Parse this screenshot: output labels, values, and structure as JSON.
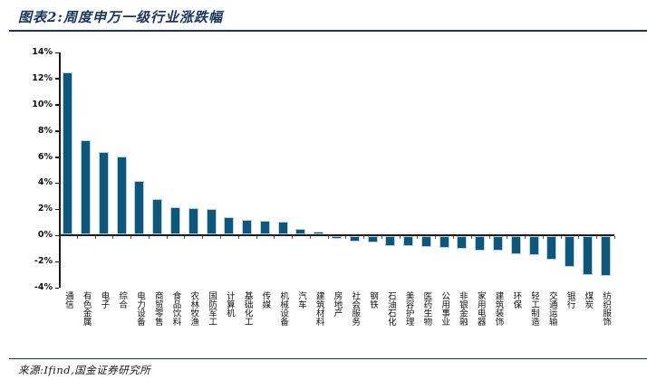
{
  "header": {
    "title": "图表2:周度申万一级行业涨跌幅"
  },
  "footer": {
    "source": "来源:Ifind,国金证券研究所"
  },
  "chart_data": {
    "type": "bar",
    "title": "周度申万一级行业涨跌幅",
    "unit": "%",
    "categories": [
      "通信",
      "有色金属",
      "电子",
      "综合",
      "电力设备",
      "商贸零售",
      "食品饮料",
      "农林牧渔",
      "国防军工",
      "计算机",
      "基础化工",
      "传媒",
      "机械设备",
      "汽车",
      "建筑材料",
      "房地产",
      "社会服务",
      "钢铁",
      "石油石化",
      "美容护理",
      "医药生物",
      "公用事业",
      "非银金融",
      "家用电器",
      "建筑装饰",
      "环保",
      "轻工制造",
      "交通运输",
      "银行",
      "煤炭",
      "纺织服饰"
    ],
    "values": [
      12.4,
      7.2,
      6.3,
      6.0,
      4.1,
      2.7,
      2.1,
      2.0,
      1.95,
      1.3,
      1.1,
      1.05,
      1.0,
      0.4,
      0.2,
      -0.15,
      -0.4,
      -0.45,
      -0.7,
      -0.75,
      -0.8,
      -0.85,
      -0.95,
      -1.05,
      -1.1,
      -1.35,
      -1.4,
      -1.75,
      -2.3,
      -2.95,
      -3.05
    ],
    "ylim": [
      -4,
      14
    ],
    "ytick_labels": [
      "14%",
      "12%",
      "10%",
      "8%",
      "6%",
      "4%",
      "2%",
      "0%",
      "-2%",
      "-4%"
    ],
    "grid": false,
    "legend": "none",
    "bar_color": "#0e567a",
    "bar_edge_color": "#b5d5e5",
    "axis_color": "#1a1a1a",
    "accent_color": "#17365d"
  }
}
